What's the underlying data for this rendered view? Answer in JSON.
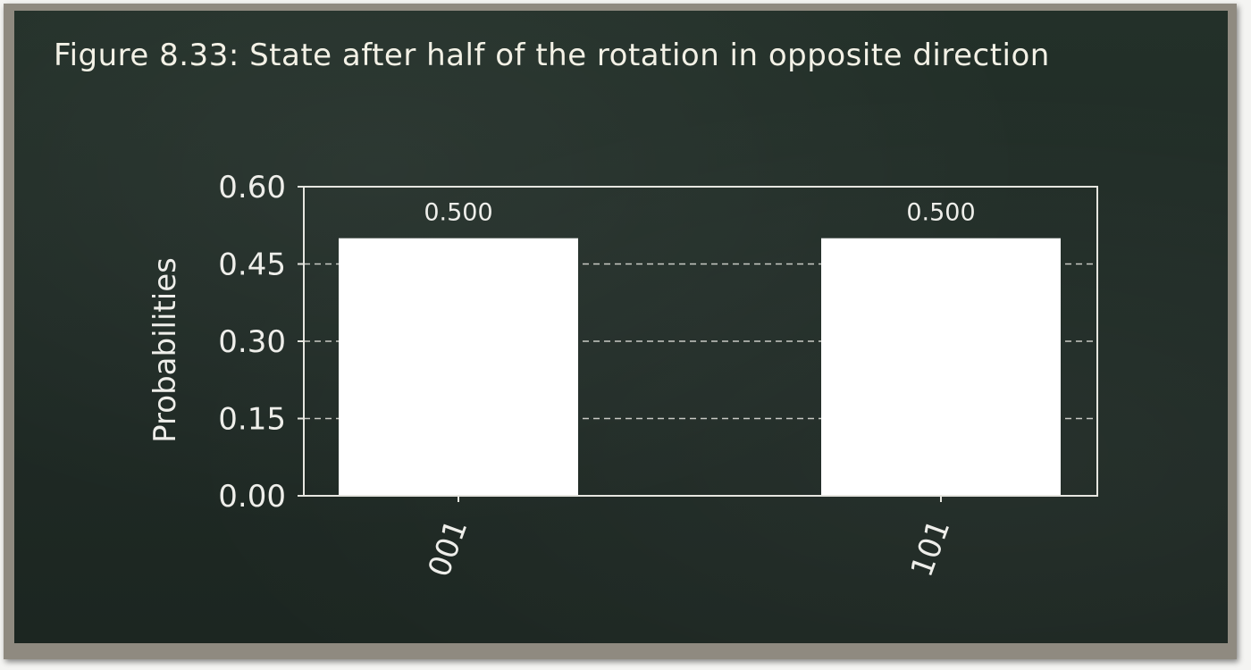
{
  "figure": {
    "caption": "Figure 8.33: State after half of the rotation in opposite direction"
  },
  "colors": {
    "board": "#1f2a25",
    "frame": "#8f8a80",
    "bar": "#ffffff",
    "axis": "#e6e6e0",
    "text": "#eeeeea"
  },
  "chart_data": {
    "type": "bar",
    "categories": [
      "001",
      "101"
    ],
    "values": [
      0.5,
      0.5
    ],
    "value_labels": [
      "0.500",
      "0.500"
    ],
    "ylabel": "Probabilities",
    "xlabel": "",
    "ylim": [
      0,
      0.6
    ],
    "yticks": [
      0.0,
      0.15,
      0.3,
      0.45,
      0.6
    ],
    "ytick_labels": [
      "0.00",
      "0.15",
      "0.30",
      "0.45",
      "0.60"
    ],
    "grid": "y-dashed",
    "legend": "none"
  }
}
